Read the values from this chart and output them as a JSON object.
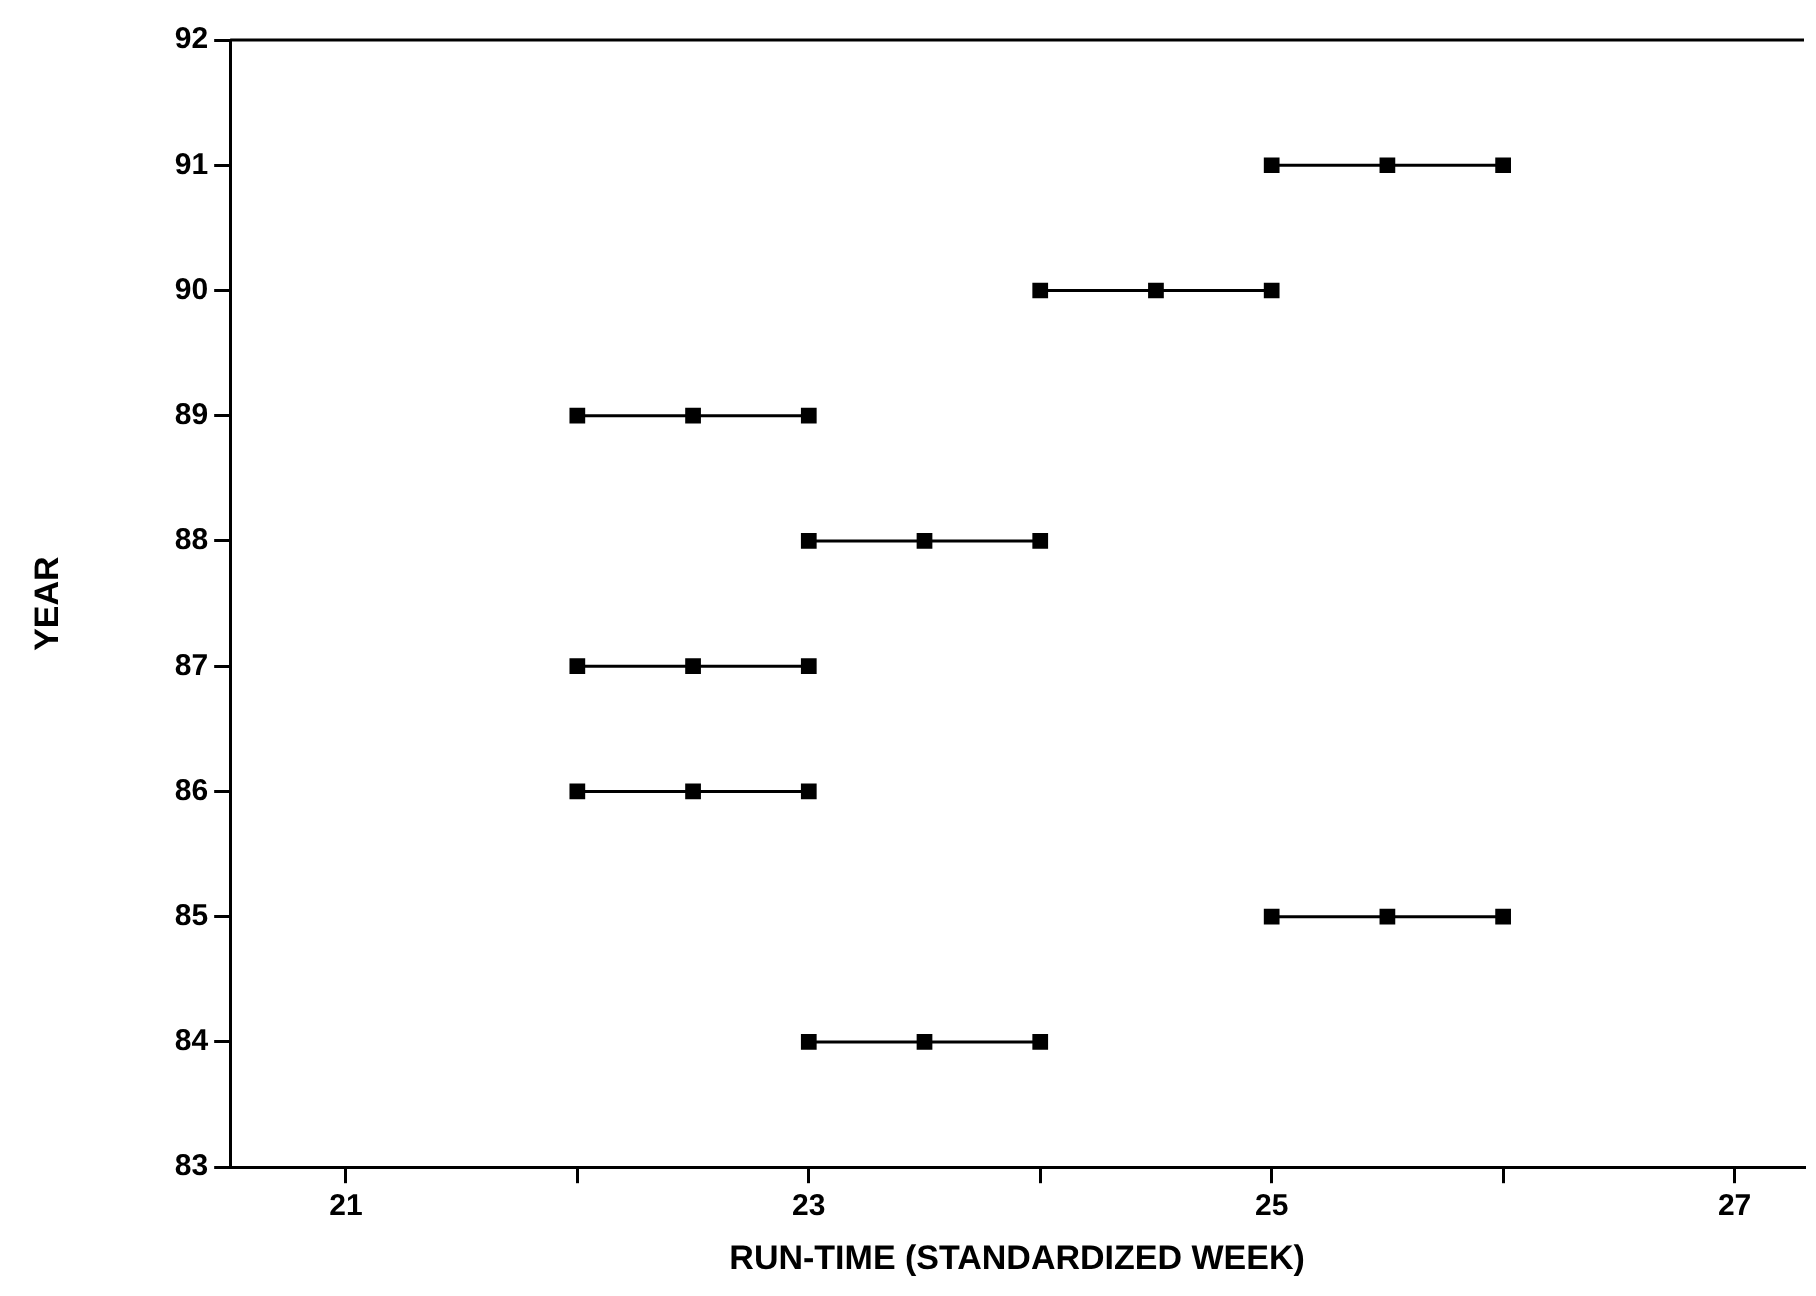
{
  "chart_data": {
    "type": "line",
    "xlabel": "RUN-TIME (STANDARDIZED WEEK)",
    "ylabel": "YEAR",
    "marker": "square",
    "line_style": "solid",
    "grid": false,
    "legend": false,
    "xlim": [
      20.5,
      27.3
    ],
    "xticks": [
      21,
      {
        "value": 22,
        "label": null
      },
      23,
      {
        "value": 24,
        "label": null
      },
      25,
      {
        "value": 26,
        "label": null
      },
      27
    ],
    "ylim": [
      83,
      92
    ],
    "yticks": [
      83,
      84,
      85,
      86,
      87,
      88,
      89,
      90,
      91,
      92
    ],
    "series": [
      {
        "color": "#000000",
        "x": [
          23,
          23.5,
          24
        ],
        "values": [
          84,
          84,
          84
        ]
      },
      {
        "color": "#000000",
        "x": [
          25,
          25.5,
          26
        ],
        "values": [
          85,
          85,
          85
        ]
      },
      {
        "color": "#000000",
        "x": [
          22,
          22.5,
          23
        ],
        "values": [
          86,
          86,
          86
        ]
      },
      {
        "color": "#000000",
        "x": [
          22,
          22.5,
          23
        ],
        "values": [
          87,
          87,
          87
        ]
      },
      {
        "color": "#000000",
        "x": [
          23,
          23.5,
          24
        ],
        "values": [
          88,
          88,
          88
        ]
      },
      {
        "color": "#000000",
        "x": [
          22,
          22.5,
          23
        ],
        "values": [
          89,
          89,
          89
        ]
      },
      {
        "color": "#000000",
        "x": [
          24,
          24.5,
          25
        ],
        "values": [
          90,
          90,
          90
        ]
      },
      {
        "color": "#000000",
        "x": [
          25,
          25.5,
          26
        ],
        "values": [
          91,
          91,
          91
        ]
      }
    ]
  }
}
